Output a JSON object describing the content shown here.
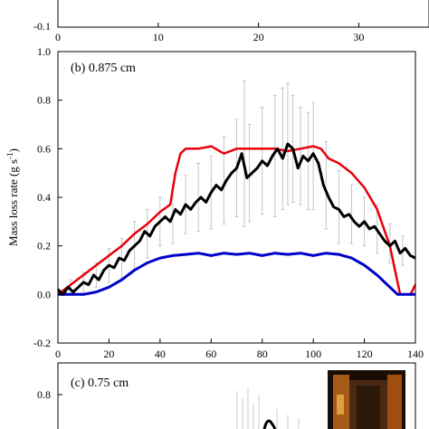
{
  "chart_data": [
    {
      "panel": "top-partial",
      "type": "line",
      "x_ticks": [
        "0",
        "10",
        "20",
        "30"
      ],
      "y_ticks": [
        "-0.1"
      ],
      "xlim": [
        0,
        37
      ],
      "ylim": [
        -0.1,
        0.0
      ]
    },
    {
      "panel": "b",
      "type": "line",
      "label": "(b) 0.875 cm",
      "xlabel": "",
      "ylabel": "Mass loss rate (g s",
      "ylabel_sup": "-1",
      "ylabel_close": ")",
      "xlim": [
        0,
        140
      ],
      "ylim": [
        -0.2,
        1.0
      ],
      "x_ticks": [
        "0",
        "20",
        "40",
        "60",
        "80",
        "100",
        "120",
        "140"
      ],
      "y_ticks": [
        "-0.2",
        "0.0",
        "0.2",
        "0.4",
        "0.6",
        "0.8",
        "1.0"
      ],
      "series": [
        {
          "color": "#e8000b",
          "x": [
            0,
            5,
            10,
            15,
            20,
            25,
            30,
            35,
            40,
            44,
            46,
            48,
            50,
            55,
            60,
            65,
            70,
            75,
            80,
            85,
            90,
            95,
            100,
            103,
            106,
            110,
            115,
            120,
            125,
            130,
            134,
            138,
            140
          ],
          "y": [
            0.0,
            0.04,
            0.08,
            0.12,
            0.16,
            0.2,
            0.25,
            0.29,
            0.34,
            0.37,
            0.5,
            0.58,
            0.6,
            0.6,
            0.61,
            0.58,
            0.6,
            0.6,
            0.6,
            0.6,
            0.59,
            0.6,
            0.61,
            0.6,
            0.56,
            0.54,
            0.5,
            0.44,
            0.35,
            0.2,
            0.0,
            0.0,
            0.04
          ]
        },
        {
          "color": "#0000c8",
          "x": [
            0,
            5,
            10,
            15,
            20,
            25,
            30,
            35,
            40,
            45,
            50,
            55,
            60,
            65,
            70,
            75,
            80,
            85,
            90,
            95,
            100,
            105,
            110,
            115,
            120,
            125,
            130,
            133,
            137,
            140
          ],
          "y": [
            0.0,
            0.0,
            0.0,
            0.01,
            0.03,
            0.06,
            0.1,
            0.13,
            0.15,
            0.16,
            0.165,
            0.17,
            0.16,
            0.17,
            0.165,
            0.17,
            0.16,
            0.17,
            0.165,
            0.17,
            0.16,
            0.17,
            0.165,
            0.15,
            0.12,
            0.08,
            0.03,
            0.0,
            0.0,
            0.0
          ],
          "linewidth": 3
        },
        {
          "color": "#000000",
          "x": [
            0,
            2,
            4,
            6,
            8,
            10,
            12,
            14,
            16,
            18,
            20,
            22,
            24,
            26,
            28,
            30,
            32,
            34,
            36,
            38,
            40,
            42,
            44,
            46,
            48,
            50,
            52,
            54,
            56,
            58,
            60,
            62,
            64,
            66,
            68,
            70,
            72,
            74,
            76,
            78,
            80,
            82,
            84,
            86,
            88,
            90,
            92,
            94,
            96,
            98,
            100,
            102,
            104,
            106,
            108,
            110,
            112,
            114,
            116,
            118,
            120,
            122,
            124,
            126,
            128,
            130,
            132,
            134,
            136,
            138,
            140
          ],
          "y": [
            0.02,
            0.0,
            0.03,
            0.01,
            0.03,
            0.05,
            0.04,
            0.08,
            0.06,
            0.1,
            0.12,
            0.11,
            0.15,
            0.14,
            0.18,
            0.2,
            0.22,
            0.26,
            0.24,
            0.28,
            0.3,
            0.32,
            0.3,
            0.35,
            0.33,
            0.37,
            0.35,
            0.38,
            0.4,
            0.38,
            0.42,
            0.45,
            0.43,
            0.47,
            0.5,
            0.52,
            0.58,
            0.48,
            0.5,
            0.52,
            0.55,
            0.53,
            0.57,
            0.6,
            0.56,
            0.62,
            0.6,
            0.52,
            0.57,
            0.55,
            0.58,
            0.54,
            0.45,
            0.4,
            0.36,
            0.35,
            0.32,
            0.33,
            0.3,
            0.28,
            0.3,
            0.27,
            0.28,
            0.25,
            0.22,
            0.2,
            0.22,
            0.17,
            0.19,
            0.16,
            0.15
          ],
          "linewidth": 3
        }
      ],
      "error_bars": {
        "color": "#c0c0c0",
        "x": [
          5,
          10,
          15,
          20,
          25,
          30,
          35,
          40,
          45,
          50,
          55,
          60,
          65,
          70,
          73,
          75,
          80,
          85,
          88,
          90,
          92,
          95,
          98,
          100,
          105,
          110,
          115,
          120,
          125,
          130,
          135
        ],
        "y": [
          0.03,
          0.05,
          0.08,
          0.12,
          0.15,
          0.2,
          0.25,
          0.3,
          0.33,
          0.37,
          0.4,
          0.42,
          0.47,
          0.52,
          0.58,
          0.5,
          0.55,
          0.57,
          0.6,
          0.62,
          0.6,
          0.57,
          0.55,
          0.57,
          0.45,
          0.36,
          0.33,
          0.3,
          0.27,
          0.21,
          0.18
        ],
        "err": [
          0.03,
          0.04,
          0.05,
          0.07,
          0.08,
          0.1,
          0.1,
          0.1,
          0.12,
          0.12,
          0.14,
          0.15,
          0.18,
          0.2,
          0.3,
          0.2,
          0.22,
          0.25,
          0.25,
          0.25,
          0.22,
          0.2,
          0.2,
          0.22,
          0.18,
          0.15,
          0.12,
          0.1,
          0.1,
          0.08,
          0.06
        ]
      }
    },
    {
      "panel": "c",
      "type": "line",
      "label": "(c) 0.75 cm",
      "y_ticks": [
        "0.8"
      ],
      "inset_image": "flame-photo"
    }
  ]
}
